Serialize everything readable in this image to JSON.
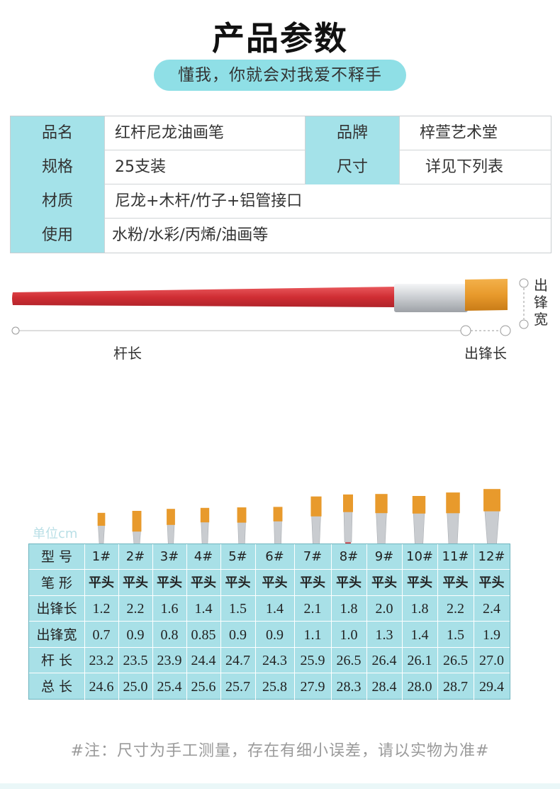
{
  "title": "产品参数",
  "subtitle": "懂我，你就会对我爱不释手",
  "spec": {
    "rows": [
      {
        "label": "品名",
        "value": "红杆尼龙油画笔",
        "label2": "品牌",
        "value2": "梓萱艺术堂"
      },
      {
        "label": "规格",
        "value": "25支装",
        "label2": "尺寸",
        "value2": "详见下列表"
      },
      {
        "label": "材质",
        "value": "尼龙+木杆/竹子+铝管接口"
      },
      {
        "label": "使用",
        "value": "水粉/水彩/丙烯/油画等"
      }
    ]
  },
  "diagram": {
    "handle_length_label": "杆长",
    "tip_length_label": "出锋长",
    "tip_width_label": "出锋宽"
  },
  "brush_colors": {
    "handle": "#d8343a",
    "ferrule": "#c9ccd0",
    "bristle": "#e89a2c"
  },
  "unit_label": "单位cm",
  "size_table": {
    "model_label": "型  号",
    "shape_label": "笔  形",
    "tip_len_label": "出锋长",
    "tip_wid_label": "出锋宽",
    "handle_len_label": "杆  长",
    "total_len_label": "总  长",
    "models": [
      "1#",
      "2#",
      "3#",
      "4#",
      "5#",
      "6#",
      "7#",
      "8#",
      "9#",
      "10#",
      "11#",
      "12#"
    ],
    "shapes": [
      "平头",
      "平头",
      "平头",
      "平头",
      "平头",
      "平头",
      "平头",
      "平头",
      "平头",
      "平头",
      "平头",
      "平头"
    ],
    "tip_length": [
      "1.2",
      "2.2",
      "1.6",
      "1.4",
      "1.5",
      "1.4",
      "2.1",
      "1.8",
      "2.0",
      "1.8",
      "2.2",
      "2.4"
    ],
    "tip_width": [
      "0.7",
      "0.9",
      "0.8",
      "0.85",
      "0.9",
      "0.9",
      "1.1",
      "1.0",
      "1.3",
      "1.4",
      "1.5",
      "1.9"
    ],
    "handle_length": [
      "23.2",
      "23.5",
      "23.9",
      "24.4",
      "24.7",
      "24.3",
      "25.9",
      "26.5",
      "26.4",
      "26.1",
      "26.5",
      "27.0"
    ],
    "total_length": [
      "24.6",
      "25.0",
      "25.4",
      "25.6",
      "25.7",
      "25.8",
      "27.9",
      "28.3",
      "28.4",
      "28.0",
      "28.7",
      "29.4"
    ]
  },
  "note": "#注：尺寸为手工测量，存在有细小误差，请以实物为准#"
}
